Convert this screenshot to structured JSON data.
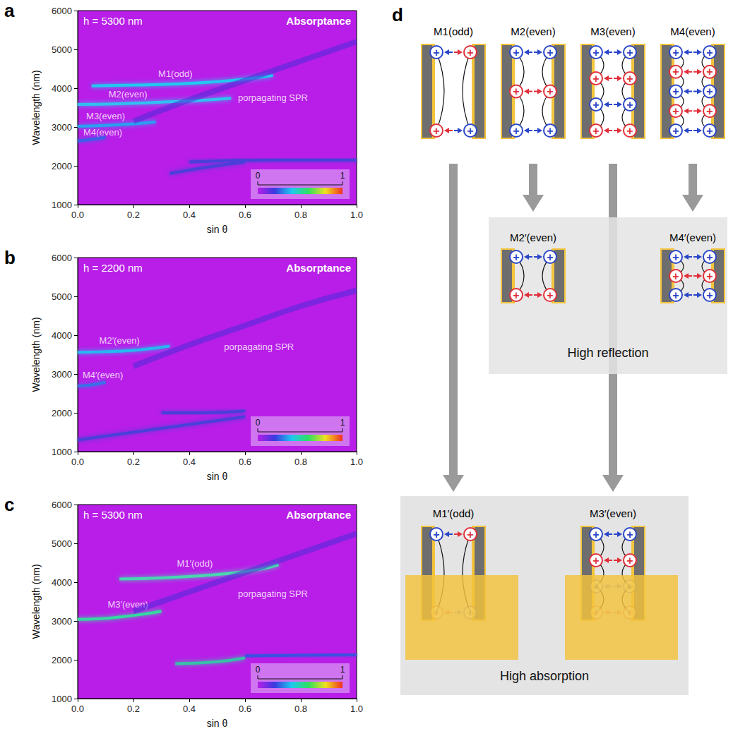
{
  "chart_data": [
    {
      "type": "line",
      "panel": "a",
      "title": "Absorptance",
      "subtitle": "h = 5300 nm",
      "x_label": "sin θ",
      "y_label": "Wavelength (nm)",
      "xlim": [
        0,
        1
      ],
      "ylim": [
        1000,
        6000
      ],
      "xticks": [
        {
          "value": 0,
          "label": "0.0"
        },
        0.2,
        0.4,
        0.6,
        0.8,
        {
          "value": 1,
          "label": "1.0"
        }
      ],
      "yticks": [
        1000,
        2000,
        3000,
        4000,
        5000,
        6000
      ],
      "grid": false,
      "series": [
        {
          "color": "#22c8f0",
          "line_style": "solid",
          "x": [
            0.05,
            0.2,
            0.35,
            0.5,
            0.62,
            0.7
          ],
          "values": [
            4060,
            4080,
            4110,
            4170,
            4250,
            4330
          ]
        },
        {
          "color": "#30c0f0",
          "line_style": "solid",
          "x": [
            0.0,
            0.15,
            0.3,
            0.45,
            0.55
          ],
          "values": [
            3580,
            3600,
            3640,
            3690,
            3740
          ]
        },
        {
          "color": "#2a9ff0",
          "line_style": "solid",
          "x": [
            0.0,
            0.1,
            0.2,
            0.28
          ],
          "values": [
            3020,
            3040,
            3080,
            3130
          ]
        },
        {
          "color": "#3a60e8",
          "line_style": "solid",
          "x": [
            0.0,
            0.05,
            0.1
          ],
          "values": [
            2640,
            2680,
            2730
          ]
        },
        {
          "color": "#4a2bd8",
          "line_style": "broad",
          "x": [
            0.2,
            0.4,
            0.6,
            0.8,
            1.0
          ],
          "values": [
            3150,
            3700,
            4200,
            4700,
            5200
          ]
        },
        {
          "color": "#4a40d8",
          "line_style": "solid",
          "x": [
            0.33,
            0.45,
            0.6
          ],
          "values": [
            1800,
            1950,
            2100
          ]
        },
        {
          "color": "#4a40d8",
          "line_style": "solid",
          "x": [
            0.4,
            0.7,
            1.0
          ],
          "values": [
            2100,
            2150,
            2150
          ]
        }
      ],
      "annotations": [
        {
          "text": "M1(odd)",
          "x": 0.35,
          "y": 4380
        },
        {
          "text": "M2(even)",
          "x": 0.18,
          "y": 3850
        },
        {
          "text": "M3(even)",
          "x": 0.1,
          "y": 3280
        },
        {
          "text": "M4(even)",
          "x": 0.09,
          "y": 2860
        },
        {
          "text": "porpagating SPR",
          "x": 0.7,
          "y": 3750
        }
      ],
      "colorbar": {
        "range": [
          0,
          1
        ],
        "ticks": [
          0,
          1
        ],
        "colors": [
          "#b81ee8",
          "#3a3ae0",
          "#1ec8f0",
          "#30e060",
          "#f0e020",
          "#f03020"
        ]
      }
    },
    {
      "type": "line",
      "panel": "b",
      "title": "Absorptance",
      "subtitle": "h = 2200 nm",
      "x_label": "sin θ",
      "y_label": "Wavelength (nm)",
      "xlim": [
        0,
        1
      ],
      "ylim": [
        1000,
        6000
      ],
      "xticks": [
        {
          "value": 0,
          "label": "0.0"
        },
        0.2,
        0.4,
        0.6,
        0.8,
        {
          "value": 1,
          "label": "1.0"
        }
      ],
      "yticks": [
        1000,
        2000,
        3000,
        4000,
        5000,
        6000
      ],
      "grid": false,
      "series": [
        {
          "color": "#28b8f0",
          "line_style": "solid",
          "x": [
            0.0,
            0.1,
            0.2,
            0.28,
            0.33
          ],
          "values": [
            3560,
            3575,
            3610,
            3670,
            3720
          ]
        },
        {
          "color": "#3a70e8",
          "line_style": "solid",
          "x": [
            0.0,
            0.05,
            0.1
          ],
          "values": [
            2690,
            2720,
            2790
          ]
        },
        {
          "color": "#4a2bd8",
          "line_style": "broad",
          "x": [
            0.2,
            0.4,
            0.6,
            0.8,
            1.0
          ],
          "values": [
            3200,
            3750,
            4250,
            4750,
            5150
          ]
        },
        {
          "color": "#4a40d8",
          "line_style": "solid",
          "x": [
            0.3,
            0.45,
            0.6
          ],
          "values": [
            2000,
            2000,
            2050
          ]
        },
        {
          "color": "#4a40d8",
          "line_style": "solid",
          "x": [
            0.0,
            0.4,
            0.6
          ],
          "values": [
            1300,
            1700,
            1900
          ]
        }
      ],
      "annotations": [
        {
          "text": "M2′(even)",
          "x": 0.15,
          "y": 3870
        },
        {
          "text": "M4′(even)",
          "x": 0.09,
          "y": 2970
        },
        {
          "text": "porpagating SPR",
          "x": 0.65,
          "y": 3700
        }
      ],
      "colorbar": {
        "range": [
          0,
          1
        ],
        "ticks": [
          0,
          1
        ],
        "colors": [
          "#b81ee8",
          "#3a3ae0",
          "#1ec8f0",
          "#30e060",
          "#f0e020",
          "#f03020"
        ]
      }
    },
    {
      "type": "line",
      "panel": "c",
      "title": "Absorptance",
      "subtitle": "h = 5300 nm",
      "x_label": "sin θ",
      "y_label": "Wavelength (nm)",
      "xlim": [
        0,
        1
      ],
      "ylim": [
        1000,
        6000
      ],
      "xticks": [
        {
          "value": 0,
          "label": "0.0"
        },
        0.2,
        0.4,
        0.6,
        0.8,
        {
          "value": 1,
          "label": "1.0"
        }
      ],
      "yticks": [
        1000,
        2000,
        3000,
        4000,
        5000,
        6000
      ],
      "grid": false,
      "series": [
        {
          "color": "#4ad6b0",
          "line_style": "solid",
          "x": [
            0.15,
            0.3,
            0.45,
            0.55,
            0.65,
            0.72
          ],
          "values": [
            4080,
            4110,
            4170,
            4230,
            4330,
            4450
          ]
        },
        {
          "color": "#36d8a0",
          "line_style": "solid",
          "x": [
            0.0,
            0.08,
            0.16,
            0.24,
            0.3
          ],
          "values": [
            3040,
            3060,
            3110,
            3180,
            3250
          ]
        },
        {
          "color": "#4a2bd8",
          "line_style": "broad",
          "x": [
            0.2,
            0.4,
            0.6,
            0.8,
            1.0
          ],
          "values": [
            3250,
            3750,
            4250,
            4750,
            5250
          ]
        },
        {
          "color": "#38c0a8",
          "line_style": "solid",
          "x": [
            0.35,
            0.5,
            0.6
          ],
          "values": [
            1900,
            1950,
            2050
          ]
        },
        {
          "color": "#3a50e0",
          "line_style": "solid",
          "x": [
            0.6,
            0.8,
            1.0
          ],
          "values": [
            2100,
            2120,
            2130
          ]
        }
      ],
      "annotations": [
        {
          "text": "M1′(odd)",
          "x": 0.42,
          "y": 4480
        },
        {
          "text": "M3′(even)",
          "x": 0.18,
          "y": 3420
        },
        {
          "text": "porpagating SPR",
          "x": 0.7,
          "y": 3700
        }
      ],
      "colorbar": {
        "range": [
          0,
          1
        ],
        "ticks": [
          0,
          1
        ],
        "colors": [
          "#b81ee8",
          "#3a3ae0",
          "#1ec8f0",
          "#30e060",
          "#f0e020",
          "#f03020"
        ]
      }
    }
  ],
  "diagram": {
    "panel": "d",
    "charge": "+",
    "top": [
      {
        "label": "M1(odd)",
        "rows": 2,
        "parity": "odd"
      },
      {
        "label": "M2(even)",
        "rows": 3,
        "parity": "even"
      },
      {
        "label": "M3(even)",
        "rows": 4,
        "parity": "even"
      },
      {
        "label": "M4(even)",
        "rows": 5,
        "parity": "even"
      }
    ],
    "reflection": {
      "title": "High reflection",
      "items": [
        {
          "label": "M2′(even)",
          "rows": 2,
          "parity": "even",
          "from": "M2(even)"
        },
        {
          "label": "M4′(even)",
          "rows": 3,
          "parity": "even",
          "from": "M4(even)"
        }
      ]
    },
    "absorption": {
      "title": "High absorption",
      "items": [
        {
          "label": "M1′(odd)",
          "rows": 2,
          "parity": "odd",
          "buried_rows": 1,
          "from": "M1(odd)"
        },
        {
          "label": "M3′(even)",
          "rows": 4,
          "parity": "even",
          "buried_rows": 2,
          "from": "M3(even)"
        }
      ]
    }
  }
}
